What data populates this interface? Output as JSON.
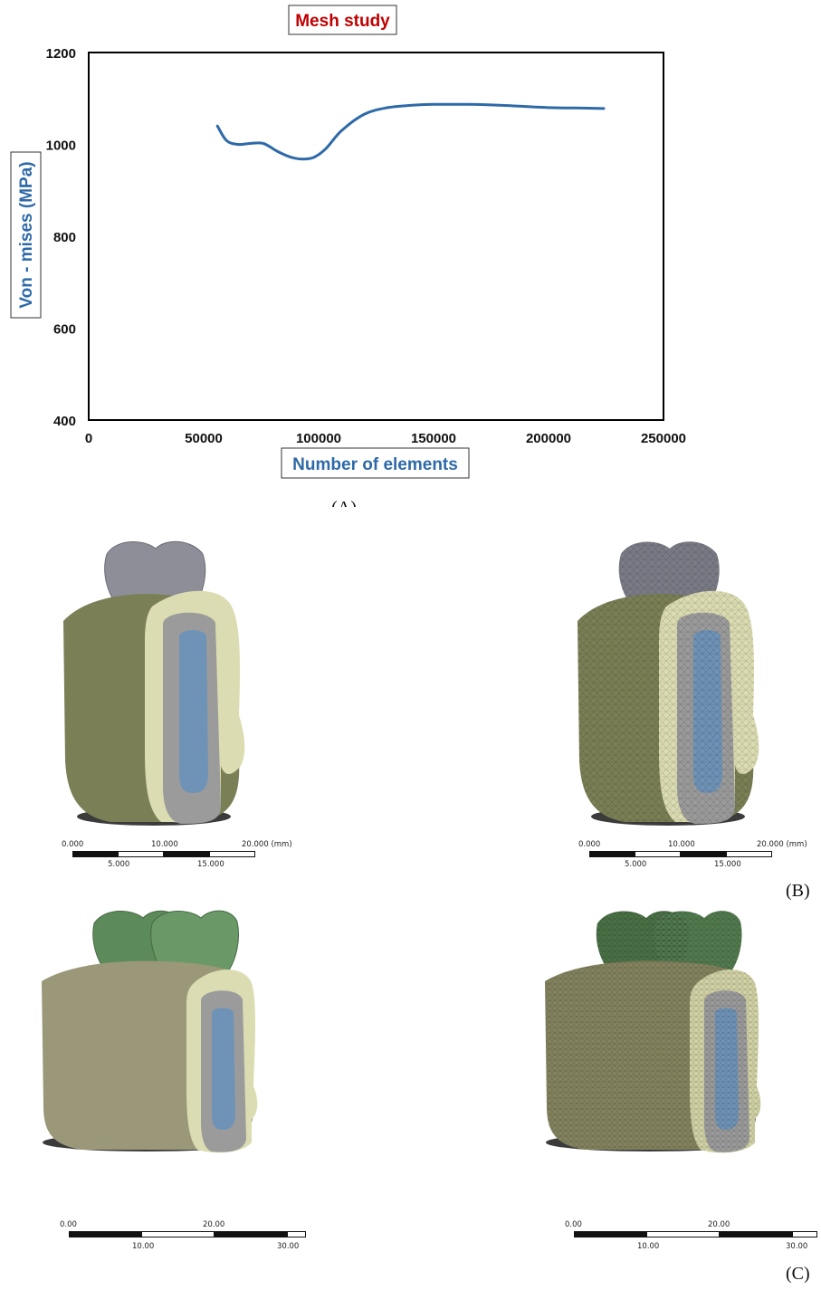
{
  "chart_data": {
    "type": "line",
    "title": "Mesh study",
    "xlabel": "Number of elements",
    "ylabel": "Von - mises (MPa)",
    "xlim": [
      0,
      250000
    ],
    "ylim": [
      400,
      1200
    ],
    "xticks": [
      0,
      50000,
      100000,
      150000,
      200000,
      250000
    ],
    "yticks": [
      400,
      600,
      800,
      1000,
      1200
    ],
    "grid": false,
    "series": [
      {
        "color": "#2e6aa8",
        "x": [
          56000,
          60000,
          65000,
          70000,
          76000,
          82000,
          88000,
          93000,
          98000,
          103000,
          110000,
          120000,
          130000,
          140000,
          150000,
          165000,
          180000,
          200000,
          215000,
          224000
        ],
        "y": [
          1040,
          1008,
          1000,
          1002,
          1002,
          985,
          972,
          968,
          972,
          990,
          1030,
          1066,
          1080,
          1085,
          1087,
          1087,
          1085,
          1080,
          1079,
          1078
        ]
      }
    ]
  },
  "labels": {
    "panel_a": "(A)",
    "panel_b": "(B)",
    "panel_c": "(C)"
  },
  "scale_bars": {
    "b_left": {
      "top": [
        "0.000",
        "10.000",
        "20.000 (mm)"
      ],
      "bottom": [
        "5.000",
        "15.000"
      ]
    },
    "b_right": {
      "top": [
        "0.000",
        "10.000",
        "20.000 (mm)"
      ],
      "bottom": [
        "5.000",
        "15.000"
      ]
    },
    "c_left": {
      "top": [
        "0.00",
        "20.00"
      ],
      "bottom": [
        "10.00",
        "30.00"
      ]
    },
    "c_right": {
      "top": [
        "0.00",
        "20.00"
      ],
      "bottom": [
        "10.00",
        "30.00"
      ]
    }
  },
  "colors": {
    "title_red": "#c00000",
    "axis_blue": "#2e6aa8",
    "bone_cortical": "#dcdcb2",
    "bone_outer": "#7b7f55",
    "implant_gray": "#9b9b9b",
    "implant_core": "#6f93b6",
    "crown_gray": "#8d8e98",
    "crown_green": "#5d8a5a"
  }
}
